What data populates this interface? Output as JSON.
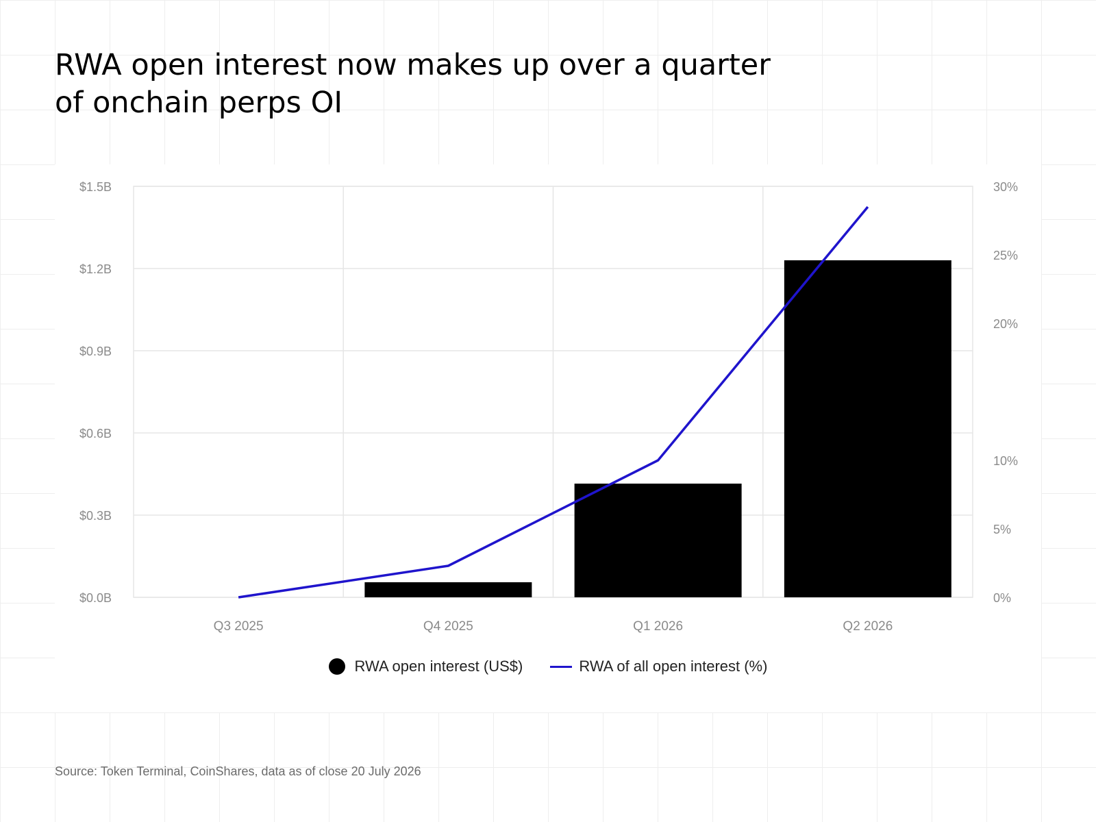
{
  "title_lines": [
    "RWA open interest now makes up over a quarter",
    "of onchain perps OI"
  ],
  "source": "Source: Token Terminal, CoinShares, data as of close 20 July 2026",
  "colors": {
    "bar": "#000000",
    "line": "#1f14cc",
    "grid": "#e6e6e6",
    "tick": "#8a8a8a"
  },
  "chart_data": {
    "type": "bar",
    "categories": [
      "Q3 2025",
      "Q4 2025",
      "Q1 2026",
      "Q2 2026"
    ],
    "series": [
      {
        "name": "RWA open interest (US$)",
        "type": "bar",
        "axis": "left",
        "values": [
          0.0,
          0.055,
          0.415,
          1.23
        ]
      },
      {
        "name": "RWA of all open interest (%)",
        "type": "line",
        "axis": "right",
        "values": [
          0.0,
          2.3,
          10.0,
          28.5
        ]
      }
    ],
    "y_left": {
      "ylim": [
        0,
        1.5
      ],
      "ticks": [
        0,
        0.3,
        0.6,
        0.9,
        1.2,
        1.5
      ],
      "tick_labels": [
        "$0.0B",
        "$0.3B",
        "$0.6B",
        "$0.9B",
        "$1.2B",
        "$1.5B"
      ]
    },
    "y_right": {
      "ylim": [
        0,
        30
      ],
      "ticks": [
        0,
        5,
        10,
        20,
        25,
        30
      ],
      "tick_labels": [
        "0%",
        "5%",
        "10%",
        "20%",
        "25%",
        "30%"
      ]
    },
    "grid": true,
    "legend_position": "bottom-center"
  }
}
